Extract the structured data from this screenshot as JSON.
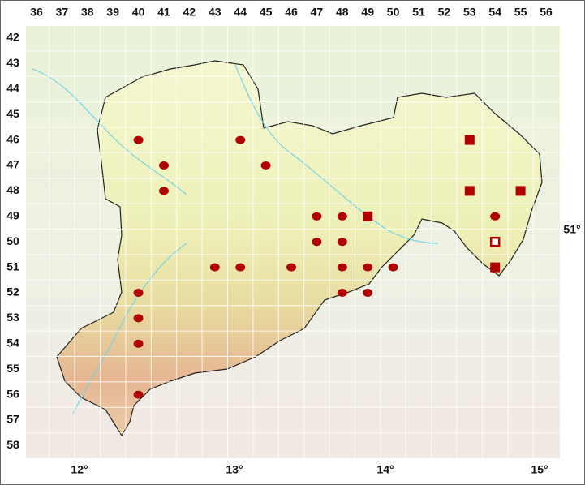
{
  "grid": {
    "columns": [
      36,
      37,
      38,
      39,
      40,
      41,
      42,
      43,
      44,
      45,
      46,
      47,
      48,
      49,
      50,
      51,
      52,
      53,
      54,
      55,
      56
    ],
    "rows": [
      42,
      43,
      44,
      45,
      46,
      47,
      48,
      49,
      50,
      51,
      52,
      53,
      54,
      55,
      56,
      57,
      58
    ]
  },
  "longitudes": [
    "12°",
    "13°",
    "14°",
    "15°"
  ],
  "latitude": "51°",
  "markers": [
    {
      "col": 40,
      "row": 46,
      "symbol": "circle"
    },
    {
      "col": 44,
      "row": 46,
      "symbol": "circle"
    },
    {
      "col": 41,
      "row": 47,
      "symbol": "circle"
    },
    {
      "col": 45,
      "row": 47,
      "symbol": "circle"
    },
    {
      "col": 41,
      "row": 48,
      "symbol": "circle"
    },
    {
      "col": 47,
      "row": 49,
      "symbol": "circle"
    },
    {
      "col": 48,
      "row": 49,
      "symbol": "circle"
    },
    {
      "col": 54,
      "row": 49,
      "symbol": "circle"
    },
    {
      "col": 47,
      "row": 50,
      "symbol": "circle"
    },
    {
      "col": 48,
      "row": 50,
      "symbol": "circle"
    },
    {
      "col": 43,
      "row": 51,
      "symbol": "circle"
    },
    {
      "col": 44,
      "row": 51,
      "symbol": "circle"
    },
    {
      "col": 46,
      "row": 51,
      "symbol": "circle"
    },
    {
      "col": 48,
      "row": 51,
      "symbol": "circle"
    },
    {
      "col": 49,
      "row": 51,
      "symbol": "circle"
    },
    {
      "col": 50,
      "row": 51,
      "symbol": "circle"
    },
    {
      "col": 40,
      "row": 52,
      "symbol": "circle"
    },
    {
      "col": 48,
      "row": 52,
      "symbol": "circle"
    },
    {
      "col": 49,
      "row": 52,
      "symbol": "circle"
    },
    {
      "col": 40,
      "row": 53,
      "symbol": "circle"
    },
    {
      "col": 40,
      "row": 54,
      "symbol": "circle"
    },
    {
      "col": 40,
      "row": 56,
      "symbol": "circle"
    },
    {
      "col": 53,
      "row": 46,
      "symbol": "square"
    },
    {
      "col": 53,
      "row": 48,
      "symbol": "square"
    },
    {
      "col": 55,
      "row": 48,
      "symbol": "square"
    },
    {
      "col": 49,
      "row": 49,
      "symbol": "square"
    },
    {
      "col": 54,
      "row": 51,
      "symbol": "square"
    },
    {
      "col": 54,
      "row": 50,
      "symbol": "open-square"
    }
  ]
}
